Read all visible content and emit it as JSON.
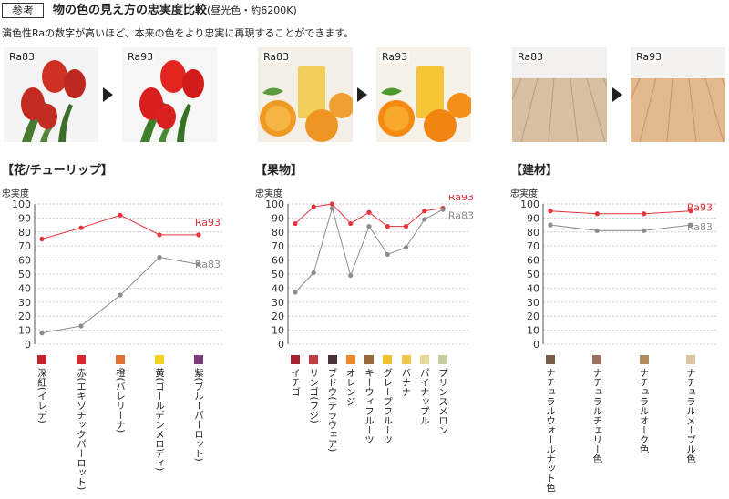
{
  "header": {
    "badge": "参考",
    "title": "物の色の見え方の忠実度比較",
    "subtitle": "(昼光色・約6200K)",
    "lead": "演色性Raの数字が高いほど、本来の色をより忠実に再現することができます。"
  },
  "photos": {
    "low_label": "Ra83",
    "high_label": "Ra93"
  },
  "colors": {
    "ra93": "#e8323c",
    "ra83": "#8c8c8c",
    "grid": "#cccccc"
  },
  "chart_data": [
    {
      "type": "line",
      "title": "【花/チューリップ】",
      "ylabel": "忠実度",
      "ylim": [
        0,
        100
      ],
      "yticks": [
        0,
        10,
        20,
        30,
        40,
        50,
        60,
        70,
        80,
        90,
        100
      ],
      "grid": true,
      "categories": [
        "深紅(イレデ)",
        "赤(エキゾチックパーロット)",
        "橙(バレリーナ)",
        "黄(ゴールデンメロディ)",
        "紫(ブルーパーロット)"
      ],
      "category_colors": [
        "#c8202a",
        "#d42a30",
        "#e07030",
        "#f2d21e",
        "#7a3a7e"
      ],
      "series": [
        {
          "name": "Ra93",
          "values": [
            75,
            83,
            92,
            78,
            78
          ]
        },
        {
          "name": "Ra83",
          "values": [
            8,
            13,
            35,
            62,
            57
          ]
        }
      ]
    },
    {
      "type": "line",
      "title": "【果物】",
      "ylabel": "忠実度",
      "ylim": [
        0,
        100
      ],
      "yticks": [
        0,
        10,
        20,
        30,
        40,
        50,
        60,
        70,
        80,
        90,
        100
      ],
      "grid": true,
      "categories": [
        "イチゴ",
        "リンゴ(フジ)",
        "ブドウ(デラウェア)",
        "オレンジ",
        "キーウィフルーツ",
        "グレープフルーツ",
        "バナナ",
        "パイナップル",
        "プリンスメロン"
      ],
      "category_colors": [
        "#a8242e",
        "#c03a40",
        "#4a3038",
        "#ec8a2a",
        "#9a6a3a",
        "#f0c030",
        "#f2c84a",
        "#e6d898",
        "#c8cca0"
      ],
      "series": [
        {
          "name": "Ra93",
          "values": [
            86,
            98,
            100,
            86,
            94,
            84,
            84,
            95,
            97
          ]
        },
        {
          "name": "Ra83",
          "values": [
            37,
            51,
            97,
            49,
            84,
            64,
            69,
            89,
            96
          ]
        }
      ]
    },
    {
      "type": "line",
      "title": "【建材】",
      "ylabel": "忠実度",
      "ylim": [
        0,
        100
      ],
      "yticks": [
        0,
        10,
        20,
        30,
        40,
        50,
        60,
        70,
        80,
        90,
        100
      ],
      "grid": true,
      "categories": [
        "ナチュラルウォールナット色",
        "ナチュラルチェリー色",
        "ナチュラルオーク色",
        "ナチュラルメープル色"
      ],
      "category_colors": [
        "#7a5a48",
        "#9a7060",
        "#b08a60",
        "#dcc4a0"
      ],
      "series": [
        {
          "name": "Ra93",
          "values": [
            95,
            93,
            93,
            95
          ]
        },
        {
          "name": "Ra83",
          "values": [
            85,
            81,
            81,
            85
          ]
        }
      ]
    }
  ]
}
